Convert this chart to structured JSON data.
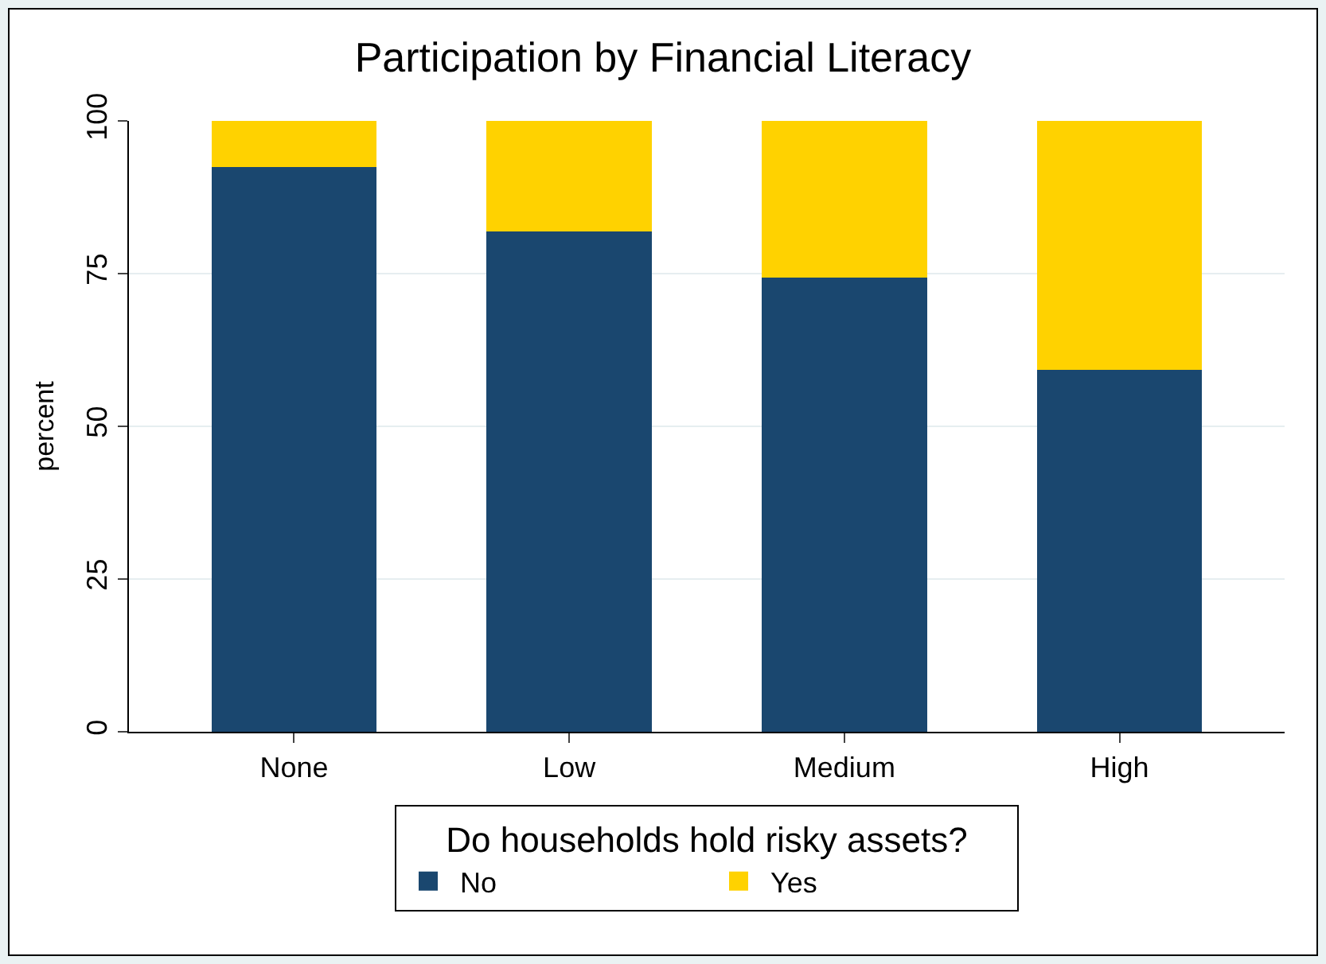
{
  "chart_data": {
    "type": "bar",
    "title": "Participation by Financial Literacy",
    "ylabel": "percent",
    "legend_title": "Do households hold risky assets?",
    "categories": [
      "None",
      "Low",
      "Medium",
      "High"
    ],
    "stacked": true,
    "series": [
      {
        "name": "No",
        "color": "#1a476f",
        "values": [
          92.4,
          81.9,
          74.3,
          59.3
        ]
      },
      {
        "name": "Yes",
        "color": "#ffd200",
        "values": [
          7.6,
          18.1,
          25.7,
          40.7
        ]
      }
    ],
    "ylim": [
      0,
      100
    ],
    "yticks": [
      0,
      25,
      50,
      75,
      100
    ],
    "grid": "y",
    "legend": "bottom"
  }
}
